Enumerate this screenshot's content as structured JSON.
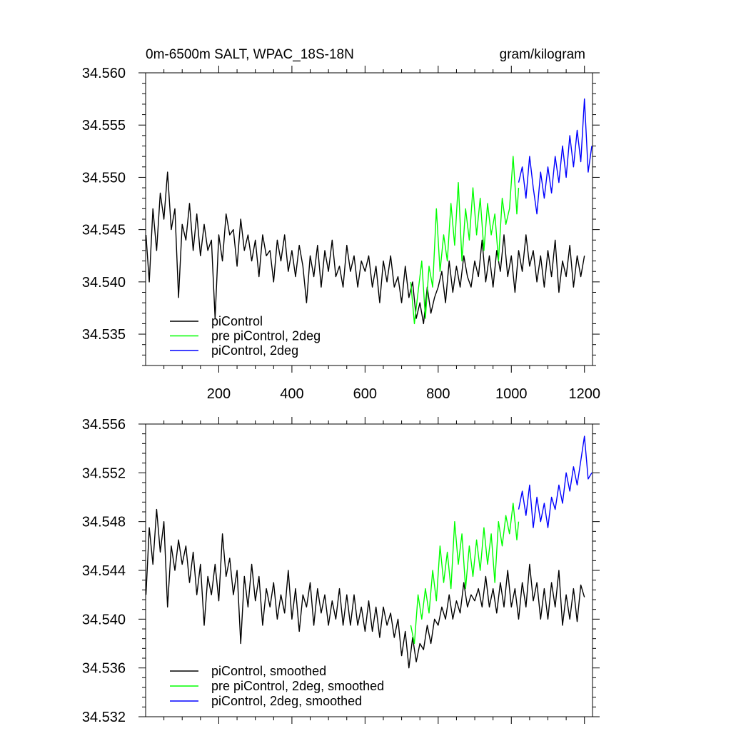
{
  "chart_data": [
    {
      "type": "line",
      "title_left": "0m-6500m SALT, WPAC_18S-18N",
      "title_right": "gram/kilogram",
      "xlim": [
        0,
        1222
      ],
      "ylim": [
        34.532,
        34.56
      ],
      "xticks": [
        200,
        400,
        600,
        800,
        1000,
        1200
      ],
      "xtick_labels": [
        "200",
        "400",
        "600",
        "800",
        "1000",
        "1200"
      ],
      "yticks": [
        34.535,
        34.54,
        34.545,
        34.55,
        34.555,
        34.56
      ],
      "ytick_labels": [
        "34.535",
        "34.540",
        "34.545",
        "34.550",
        "34.555",
        "34.560"
      ],
      "legend_position": "bottom-left",
      "series": [
        {
          "name": "piControl",
          "color": "#000000",
          "x": [
            1,
            10,
            20,
            30,
            40,
            50,
            60,
            70,
            80,
            90,
            100,
            110,
            120,
            130,
            140,
            150,
            160,
            170,
            180,
            190,
            200,
            210,
            220,
            230,
            240,
            250,
            260,
            270,
            280,
            290,
            300,
            310,
            320,
            330,
            340,
            350,
            360,
            370,
            380,
            390,
            400,
            410,
            420,
            430,
            440,
            450,
            460,
            470,
            480,
            490,
            500,
            510,
            520,
            530,
            540,
            550,
            560,
            570,
            580,
            590,
            600,
            610,
            620,
            630,
            640,
            650,
            660,
            670,
            680,
            690,
            700,
            710,
            720,
            730,
            740,
            750,
            760,
            770,
            780,
            790,
            800,
            810,
            820,
            830,
            840,
            850,
            860,
            870,
            880,
            890,
            900,
            910,
            920,
            930,
            940,
            950,
            960,
            970,
            980,
            990,
            1000,
            1010,
            1020,
            1030,
            1040,
            1050,
            1060,
            1070,
            1080,
            1090,
            1100,
            1110,
            1120,
            1130,
            1140,
            1150,
            1160,
            1170,
            1180,
            1190,
            1200
          ],
          "y": [
            34.5445,
            34.54,
            34.547,
            34.543,
            34.5485,
            34.546,
            34.5505,
            34.545,
            34.547,
            34.5385,
            34.5455,
            34.544,
            34.5475,
            34.543,
            34.5465,
            34.5425,
            34.5455,
            34.543,
            34.544,
            34.5365,
            34.5445,
            34.542,
            34.5465,
            34.5445,
            34.545,
            34.5415,
            34.546,
            34.543,
            34.5445,
            34.542,
            34.544,
            34.5405,
            34.5445,
            34.5425,
            34.543,
            34.54,
            34.544,
            34.542,
            34.5445,
            34.541,
            34.543,
            34.5405,
            34.5435,
            34.5415,
            34.538,
            34.5425,
            34.5405,
            34.5435,
            34.5395,
            34.543,
            34.541,
            34.544,
            34.5405,
            34.5415,
            34.5395,
            34.5435,
            34.541,
            34.5425,
            34.5395,
            34.542,
            34.541,
            34.5425,
            34.5395,
            34.5415,
            34.538,
            34.542,
            34.54,
            34.5425,
            34.5395,
            34.5405,
            34.538,
            34.5415,
            34.5385,
            34.54,
            34.5365,
            34.538,
            34.536,
            34.5395,
            34.537,
            34.5385,
            34.5395,
            34.541,
            34.538,
            34.542,
            34.539,
            34.5415,
            34.5395,
            34.5425,
            34.5405,
            34.5395,
            34.542,
            34.5405,
            34.544,
            34.54,
            34.5425,
            34.5395,
            34.543,
            34.541,
            34.5445,
            34.5405,
            34.5425,
            34.539,
            34.543,
            34.541,
            34.5445,
            34.5415,
            34.543,
            34.54,
            34.5425,
            34.5395,
            34.543,
            34.5405,
            34.544,
            34.539,
            34.542,
            34.5405,
            34.5435,
            34.5395,
            34.5425,
            34.5405,
            34.5425
          ]
        },
        {
          "name": "pre piControl, 2deg",
          "color": "#00ff00",
          "x": [
            725,
            735,
            745,
            755,
            765,
            775,
            785,
            795,
            805,
            815,
            825,
            835,
            845,
            855,
            865,
            875,
            885,
            895,
            905,
            915,
            925,
            935,
            945,
            955,
            965,
            975,
            985,
            995,
            1005,
            1015,
            1020
          ],
          "y": [
            34.54,
            34.536,
            34.539,
            34.542,
            34.5365,
            34.5415,
            34.5395,
            34.547,
            34.541,
            34.5445,
            34.542,
            34.5475,
            34.5435,
            34.5495,
            34.542,
            34.547,
            34.544,
            34.549,
            34.5445,
            34.548,
            34.543,
            34.5475,
            34.5445,
            34.5465,
            34.542,
            34.548,
            34.5455,
            34.547,
            34.552,
            34.5465,
            34.549
          ]
        },
        {
          "name": "piControl, 2deg",
          "color": "#0000ff",
          "x": [
            1020,
            1030,
            1040,
            1050,
            1060,
            1070,
            1080,
            1090,
            1100,
            1110,
            1120,
            1130,
            1140,
            1150,
            1160,
            1170,
            1180,
            1190,
            1200,
            1210,
            1220
          ],
          "y": [
            34.5495,
            34.551,
            34.548,
            34.552,
            34.549,
            34.5465,
            34.5505,
            34.548,
            34.551,
            34.5485,
            34.552,
            34.5495,
            34.553,
            34.55,
            34.554,
            34.551,
            34.5545,
            34.5515,
            34.5575,
            34.5505,
            34.553
          ]
        }
      ]
    },
    {
      "type": "line",
      "xlim": [
        0,
        1222
      ],
      "ylim": [
        34.532,
        34.556
      ],
      "xticks": [
        200,
        400,
        600,
        800,
        1000,
        1200
      ],
      "yticks": [
        34.532,
        34.536,
        34.54,
        34.544,
        34.548,
        34.552,
        34.556
      ],
      "ytick_labels": [
        "34.532",
        "34.536",
        "34.540",
        "34.544",
        "34.548",
        "34.552",
        "34.556"
      ],
      "legend_position": "bottom-left",
      "series": [
        {
          "name": "piControl, smoothed",
          "color": "#000000",
          "x": [
            1,
            10,
            20,
            30,
            40,
            50,
            60,
            70,
            80,
            90,
            100,
            110,
            120,
            130,
            140,
            150,
            160,
            170,
            180,
            190,
            200,
            210,
            220,
            230,
            240,
            250,
            260,
            270,
            280,
            290,
            300,
            310,
            320,
            330,
            340,
            350,
            360,
            370,
            380,
            390,
            400,
            410,
            420,
            430,
            440,
            450,
            460,
            470,
            480,
            490,
            500,
            510,
            520,
            530,
            540,
            550,
            560,
            570,
            580,
            590,
            600,
            610,
            620,
            630,
            640,
            650,
            660,
            670,
            680,
            690,
            700,
            710,
            720,
            730,
            740,
            750,
            760,
            770,
            780,
            790,
            800,
            810,
            820,
            830,
            840,
            850,
            860,
            870,
            880,
            890,
            900,
            910,
            920,
            930,
            940,
            950,
            960,
            970,
            980,
            990,
            1000,
            1010,
            1020,
            1030,
            1040,
            1050,
            1060,
            1070,
            1080,
            1090,
            1100,
            1110,
            1120,
            1130,
            1140,
            1150,
            1160,
            1170,
            1180,
            1190,
            1200
          ],
          "y": [
            34.542,
            34.5475,
            34.5445,
            34.549,
            34.5455,
            34.548,
            34.541,
            34.546,
            34.544,
            34.5465,
            34.5445,
            34.546,
            34.543,
            34.5455,
            34.542,
            34.5445,
            34.5395,
            34.5435,
            34.542,
            34.5445,
            34.5415,
            34.547,
            34.5435,
            34.545,
            34.542,
            34.544,
            34.538,
            34.5435,
            34.541,
            34.5445,
            34.5415,
            34.5435,
            34.5395,
            34.5425,
            34.541,
            34.543,
            34.54,
            34.542,
            34.5405,
            34.544,
            34.54,
            34.5425,
            34.539,
            34.542,
            34.541,
            34.543,
            34.5395,
            34.5425,
            34.5405,
            34.542,
            34.5395,
            34.5415,
            34.54,
            34.5425,
            34.5395,
            34.542,
            34.5395,
            34.542,
            34.5395,
            34.541,
            34.539,
            34.5415,
            34.539,
            34.541,
            34.5385,
            34.541,
            34.5395,
            34.5405,
            34.5385,
            34.54,
            34.537,
            34.539,
            34.536,
            34.5385,
            34.5365,
            34.538,
            34.5375,
            34.5395,
            34.538,
            34.54,
            34.5395,
            34.541,
            34.54,
            34.542,
            34.54,
            34.5415,
            34.5405,
            34.543,
            34.541,
            34.542,
            34.5415,
            34.5425,
            34.541,
            34.5435,
            34.541,
            34.5425,
            34.5405,
            34.543,
            34.541,
            34.544,
            34.541,
            34.5425,
            34.54,
            34.543,
            34.541,
            34.5445,
            34.5415,
            34.543,
            34.54,
            34.5425,
            34.54,
            34.543,
            34.541,
            34.544,
            34.5395,
            34.542,
            34.54,
            34.5425,
            34.5398,
            34.5428,
            34.5418
          ]
        },
        {
          "name": "pre piControl, 2deg, smoothed",
          "color": "#00ff00",
          "x": [
            725,
            735,
            745,
            755,
            765,
            775,
            785,
            795,
            805,
            815,
            825,
            835,
            845,
            855,
            865,
            875,
            885,
            895,
            905,
            915,
            925,
            935,
            945,
            955,
            965,
            975,
            985,
            995,
            1005,
            1015,
            1020
          ],
          "y": [
            34.5395,
            34.538,
            34.542,
            34.54,
            34.5425,
            34.5405,
            34.544,
            34.5415,
            34.546,
            34.543,
            34.5455,
            34.5425,
            34.548,
            34.5445,
            34.547,
            34.5425,
            34.546,
            34.5435,
            34.5465,
            34.544,
            34.5475,
            34.5445,
            34.547,
            34.543,
            34.548,
            34.546,
            34.5485,
            34.547,
            34.5495,
            34.5465,
            34.548
          ]
        },
        {
          "name": "piControl, 2deg, smoothed",
          "color": "#0000ff",
          "x": [
            1020,
            1030,
            1040,
            1050,
            1060,
            1070,
            1080,
            1090,
            1100,
            1110,
            1120,
            1130,
            1140,
            1150,
            1160,
            1170,
            1180,
            1190,
            1200,
            1210,
            1220
          ],
          "y": [
            34.549,
            34.5505,
            34.5485,
            34.551,
            34.5475,
            34.55,
            34.548,
            34.5495,
            34.5475,
            34.55,
            34.549,
            34.551,
            34.5495,
            34.552,
            34.5505,
            34.5525,
            34.551,
            34.553,
            34.555,
            34.5515,
            34.552
          ]
        }
      ]
    }
  ]
}
